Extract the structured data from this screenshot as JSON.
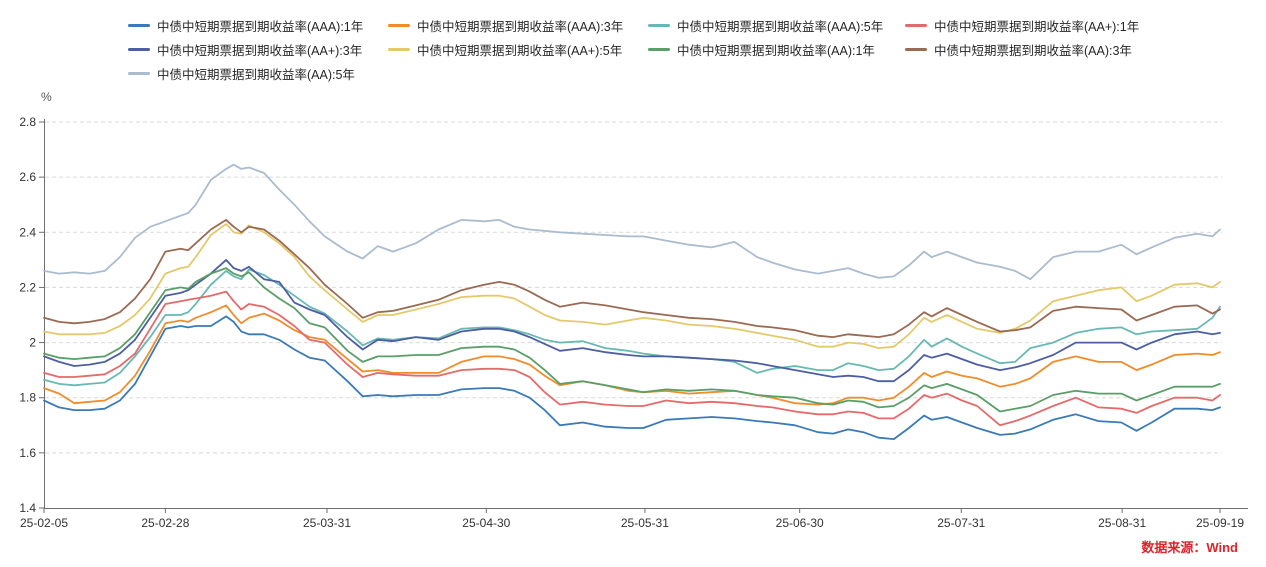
{
  "chart_data": {
    "type": "line",
    "unit_label": "%",
    "source_note": "数据来源：Wind",
    "source_color": "#d9262c",
    "ylim": [
      1.4,
      2.8
    ],
    "y_ticks": [
      2.8,
      2.6,
      2.4,
      2.2,
      2,
      1.8,
      1.6,
      1.4
    ],
    "grid": "dashed-horizontal",
    "legend_position": "top",
    "x_range": [
      0,
      155
    ],
    "x_ticks": [
      {
        "label": "25-02-05",
        "t": 0
      },
      {
        "label": "25-02-28",
        "t": 16
      },
      {
        "label": "25-03-31",
        "t": 37.3
      },
      {
        "label": "25-04-30",
        "t": 58.3
      },
      {
        "label": "25-05-31",
        "t": 79.2
      },
      {
        "label": "25-06-30",
        "t": 99.6
      },
      {
        "label": "25-07-31",
        "t": 120.9
      },
      {
        "label": "25-08-31",
        "t": 142.1
      },
      {
        "label": "25-09-19",
        "t": 155
      }
    ],
    "t": [
      0,
      2,
      4,
      6,
      8,
      10,
      12,
      14,
      16,
      18,
      19,
      20,
      22,
      24,
      25,
      26,
      27,
      29,
      31,
      33,
      35,
      37,
      40,
      42,
      44,
      46,
      49,
      52,
      55,
      58,
      60,
      62,
      64,
      66,
      68,
      71,
      74,
      77,
      79,
      82,
      85,
      88,
      91,
      94,
      96,
      99,
      102,
      104,
      106,
      108,
      110,
      112,
      114,
      116,
      117,
      119,
      121,
      123,
      126,
      128,
      130,
      133,
      136,
      139,
      142,
      144,
      146,
      149,
      152,
      154,
      155
    ],
    "series": [
      {
        "name": "中债中短期票据到期收益率(AAA):1年",
        "color": "#3a7ab6",
        "values": [
          1.79,
          1.765,
          1.755,
          1.755,
          1.76,
          1.79,
          1.85,
          1.95,
          2.05,
          2.06,
          2.055,
          2.06,
          2.06,
          2.095,
          2.075,
          2.04,
          2.03,
          2.03,
          2.01,
          1.975,
          1.945,
          1.935,
          1.86,
          1.805,
          1.81,
          1.805,
          1.81,
          1.81,
          1.83,
          1.835,
          1.835,
          1.825,
          1.8,
          1.755,
          1.7,
          1.71,
          1.695,
          1.69,
          1.69,
          1.72,
          1.725,
          1.73,
          1.725,
          1.715,
          1.71,
          1.7,
          1.675,
          1.67,
          1.685,
          1.675,
          1.655,
          1.65,
          1.69,
          1.735,
          1.72,
          1.73,
          1.71,
          1.69,
          1.665,
          1.67,
          1.685,
          1.72,
          1.74,
          1.715,
          1.71,
          1.68,
          1.71,
          1.76,
          1.76,
          1.755,
          1.765
        ]
      },
      {
        "name": "中债中短期票据到期收益率(AAA):3年",
        "color": "#f08c2a",
        "values": [
          1.835,
          1.815,
          1.78,
          1.785,
          1.79,
          1.82,
          1.88,
          1.97,
          2.07,
          2.08,
          2.075,
          2.09,
          2.11,
          2.135,
          2.1,
          2.07,
          2.09,
          2.105,
          2.08,
          2.045,
          2.02,
          2.01,
          1.94,
          1.895,
          1.9,
          1.89,
          1.89,
          1.89,
          1.93,
          1.95,
          1.95,
          1.94,
          1.92,
          1.88,
          1.845,
          1.86,
          1.845,
          1.825,
          1.82,
          1.825,
          1.815,
          1.82,
          1.825,
          1.81,
          1.8,
          1.78,
          1.775,
          1.78,
          1.8,
          1.8,
          1.79,
          1.8,
          1.84,
          1.89,
          1.875,
          1.895,
          1.88,
          1.87,
          1.84,
          1.85,
          1.87,
          1.93,
          1.95,
          1.93,
          1.93,
          1.9,
          1.92,
          1.955,
          1.96,
          1.955,
          1.965
        ]
      },
      {
        "name": "中债中短期票据到期收益率(AAA):5年",
        "color": "#68b8b3",
        "values": [
          1.865,
          1.85,
          1.845,
          1.85,
          1.855,
          1.89,
          1.95,
          2.02,
          2.1,
          2.1,
          2.11,
          2.14,
          2.21,
          2.26,
          2.24,
          2.23,
          2.265,
          2.245,
          2.21,
          2.17,
          2.13,
          2.105,
          2.04,
          1.99,
          2.015,
          2.01,
          2.02,
          2.015,
          2.05,
          2.055,
          2.055,
          2.045,
          2.03,
          2.01,
          2.0,
          2.005,
          1.98,
          1.97,
          1.96,
          1.95,
          1.945,
          1.94,
          1.93,
          1.89,
          1.905,
          1.915,
          1.9,
          1.9,
          1.925,
          1.915,
          1.9,
          1.905,
          1.95,
          2.01,
          1.985,
          2.015,
          1.985,
          1.96,
          1.925,
          1.93,
          1.98,
          2.0,
          2.035,
          2.05,
          2.055,
          2.03,
          2.04,
          2.045,
          2.05,
          2.09,
          2.13
        ]
      },
      {
        "name": "中债中短期票据到期收益率(AA+):1年",
        "color": "#e56a6a",
        "values": [
          1.89,
          1.875,
          1.875,
          1.88,
          1.885,
          1.915,
          1.96,
          2.05,
          2.14,
          2.15,
          2.155,
          2.16,
          2.17,
          2.185,
          2.15,
          2.12,
          2.14,
          2.13,
          2.1,
          2.06,
          2.01,
          2.0,
          1.92,
          1.875,
          1.89,
          1.885,
          1.88,
          1.88,
          1.9,
          1.905,
          1.905,
          1.9,
          1.875,
          1.82,
          1.775,
          1.785,
          1.775,
          1.77,
          1.77,
          1.79,
          1.78,
          1.785,
          1.78,
          1.77,
          1.765,
          1.75,
          1.74,
          1.74,
          1.75,
          1.745,
          1.725,
          1.725,
          1.76,
          1.81,
          1.8,
          1.815,
          1.79,
          1.77,
          1.7,
          1.715,
          1.735,
          1.77,
          1.8,
          1.765,
          1.76,
          1.745,
          1.77,
          1.8,
          1.8,
          1.79,
          1.81
        ]
      },
      {
        "name": "中债中短期票据到期收益率(AA+):3年",
        "color": "#4d5ea3",
        "values": [
          1.95,
          1.93,
          1.915,
          1.92,
          1.93,
          1.96,
          2.01,
          2.09,
          2.17,
          2.18,
          2.19,
          2.21,
          2.25,
          2.3,
          2.27,
          2.26,
          2.275,
          2.23,
          2.22,
          2.145,
          2.12,
          2.1,
          2.02,
          1.975,
          2.01,
          2.005,
          2.02,
          2.01,
          2.04,
          2.05,
          2.05,
          2.04,
          2.02,
          1.995,
          1.97,
          1.98,
          1.965,
          1.955,
          1.95,
          1.95,
          1.945,
          1.94,
          1.935,
          1.925,
          1.915,
          1.9,
          1.885,
          1.875,
          1.88,
          1.875,
          1.86,
          1.86,
          1.9,
          1.955,
          1.945,
          1.96,
          1.94,
          1.92,
          1.9,
          1.91,
          1.925,
          1.955,
          2.0,
          2.0,
          2.0,
          1.975,
          2.0,
          2.03,
          2.04,
          2.03,
          2.035
        ]
      },
      {
        "name": "中债中短期票据到期收益率(AA+):5年",
        "color": "#e4c96b",
        "values": [
          2.04,
          2.03,
          2.03,
          2.03,
          2.035,
          2.06,
          2.1,
          2.16,
          2.25,
          2.27,
          2.275,
          2.31,
          2.39,
          2.43,
          2.4,
          2.395,
          2.425,
          2.4,
          2.36,
          2.31,
          2.24,
          2.19,
          2.12,
          2.075,
          2.1,
          2.1,
          2.12,
          2.14,
          2.165,
          2.17,
          2.17,
          2.16,
          2.13,
          2.1,
          2.08,
          2.075,
          2.065,
          2.08,
          2.09,
          2.08,
          2.065,
          2.06,
          2.05,
          2.035,
          2.025,
          2.01,
          1.985,
          1.985,
          2.0,
          1.995,
          1.98,
          1.985,
          2.03,
          2.09,
          2.075,
          2.1,
          2.075,
          2.05,
          2.035,
          2.05,
          2.08,
          2.15,
          2.17,
          2.19,
          2.2,
          2.15,
          2.17,
          2.21,
          2.215,
          2.2,
          2.22
        ]
      },
      {
        "name": "中债中短期票据到期收益率(AA):1年",
        "color": "#5a9e68",
        "values": [
          1.96,
          1.945,
          1.94,
          1.945,
          1.95,
          1.98,
          2.03,
          2.11,
          2.19,
          2.2,
          2.195,
          2.22,
          2.25,
          2.27,
          2.25,
          2.24,
          2.255,
          2.2,
          2.16,
          2.125,
          2.07,
          2.055,
          1.97,
          1.93,
          1.95,
          1.95,
          1.955,
          1.955,
          1.98,
          1.985,
          1.985,
          1.975,
          1.945,
          1.9,
          1.85,
          1.86,
          1.845,
          1.83,
          1.82,
          1.83,
          1.825,
          1.83,
          1.825,
          1.81,
          1.805,
          1.8,
          1.78,
          1.775,
          1.79,
          1.785,
          1.765,
          1.77,
          1.8,
          1.845,
          1.835,
          1.85,
          1.83,
          1.81,
          1.75,
          1.76,
          1.77,
          1.81,
          1.825,
          1.815,
          1.815,
          1.79,
          1.81,
          1.84,
          1.84,
          1.84,
          1.85
        ]
      },
      {
        "name": "中债中短期票据到期收益率(AA):3年",
        "color": "#9a6a52",
        "values": [
          2.09,
          2.075,
          2.07,
          2.075,
          2.085,
          2.11,
          2.16,
          2.23,
          2.33,
          2.34,
          2.335,
          2.36,
          2.41,
          2.445,
          2.42,
          2.4,
          2.42,
          2.41,
          2.37,
          2.32,
          2.27,
          2.21,
          2.14,
          2.09,
          2.11,
          2.115,
          2.135,
          2.155,
          2.19,
          2.21,
          2.22,
          2.21,
          2.185,
          2.155,
          2.13,
          2.145,
          2.135,
          2.12,
          2.11,
          2.1,
          2.09,
          2.085,
          2.075,
          2.06,
          2.055,
          2.045,
          2.025,
          2.02,
          2.03,
          2.025,
          2.02,
          2.03,
          2.065,
          2.11,
          2.095,
          2.125,
          2.1,
          2.075,
          2.04,
          2.045,
          2.055,
          2.115,
          2.13,
          2.125,
          2.12,
          2.08,
          2.1,
          2.13,
          2.135,
          2.105,
          2.12
        ]
      },
      {
        "name": "中债中短期票据到期收益率(AA):5年",
        "color": "#abbccf",
        "values": [
          2.26,
          2.25,
          2.255,
          2.25,
          2.26,
          2.31,
          2.38,
          2.42,
          2.44,
          2.46,
          2.47,
          2.5,
          2.59,
          2.63,
          2.645,
          2.63,
          2.635,
          2.615,
          2.555,
          2.5,
          2.44,
          2.385,
          2.33,
          2.305,
          2.35,
          2.33,
          2.36,
          2.41,
          2.445,
          2.44,
          2.445,
          2.42,
          2.41,
          2.405,
          2.4,
          2.395,
          2.39,
          2.385,
          2.385,
          2.37,
          2.355,
          2.345,
          2.365,
          2.31,
          2.29,
          2.265,
          2.25,
          2.26,
          2.27,
          2.25,
          2.235,
          2.24,
          2.28,
          2.33,
          2.31,
          2.33,
          2.31,
          2.29,
          2.275,
          2.26,
          2.23,
          2.31,
          2.33,
          2.33,
          2.355,
          2.32,
          2.345,
          2.38,
          2.395,
          2.385,
          2.41
        ]
      }
    ]
  }
}
